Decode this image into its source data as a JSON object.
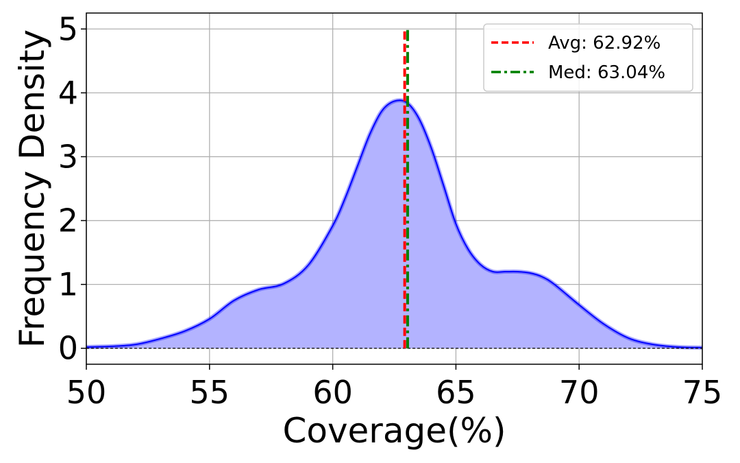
{
  "chart_data": {
    "type": "area",
    "xlabel": "Coverage(%)",
    "ylabel": "Frequency Density",
    "xlim": [
      50,
      75
    ],
    "ylim": [
      -0.25,
      5.25
    ],
    "xticks": [
      50,
      55,
      60,
      65,
      70,
      75
    ],
    "yticks": [
      0,
      1,
      2,
      3,
      4,
      5
    ],
    "grid": true,
    "legend_position": "top-right",
    "series": [
      {
        "style": "filled-density",
        "color": "#0000ff",
        "fill_color": "#b3b3ff",
        "x": [
          50,
          51,
          52,
          53,
          54,
          55,
          56,
          57,
          58,
          59,
          60,
          60.5,
          61,
          61.5,
          62,
          62.5,
          63,
          63.5,
          64,
          64.5,
          65,
          65.5,
          66,
          66.5,
          67,
          67.5,
          68,
          68.5,
          69,
          70,
          71,
          72,
          73,
          74,
          75
        ],
        "y": [
          0.02,
          0.03,
          0.06,
          0.15,
          0.27,
          0.46,
          0.75,
          0.92,
          1.01,
          1.3,
          1.92,
          2.35,
          2.85,
          3.35,
          3.72,
          3.87,
          3.85,
          3.6,
          3.14,
          2.55,
          1.95,
          1.55,
          1.31,
          1.2,
          1.2,
          1.2,
          1.18,
          1.12,
          1.0,
          0.68,
          0.38,
          0.16,
          0.06,
          0.02,
          0.01
        ]
      }
    ],
    "reference_lines": [
      {
        "label": "Avg: 62.92%",
        "x": 62.92,
        "color": "#ff0000",
        "dash": "dashed",
        "y_top": 5.0
      },
      {
        "label": "Med: 63.04%",
        "x": 63.04,
        "color": "#008000",
        "dash": "dash-dot",
        "y_top": 5.0
      }
    ],
    "baseline": {
      "y": 0,
      "color": "#000000",
      "dash": "dashed"
    }
  }
}
